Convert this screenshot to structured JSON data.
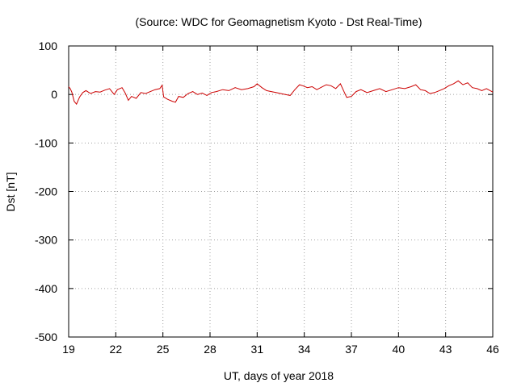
{
  "chart_data": {
    "type": "line",
    "title": "(Source: WDC for Geomagnetism Kyoto - Dst Real-Time)",
    "xlabel": "UT, days of year 2018",
    "ylabel": "Dst [nT]",
    "xlim": [
      19,
      46
    ],
    "ylim": [
      -500,
      100
    ],
    "x_ticks": [
      19,
      22,
      25,
      28,
      31,
      34,
      37,
      40,
      43,
      46
    ],
    "y_ticks": [
      100,
      0,
      -100,
      -200,
      -300,
      -400,
      -500
    ],
    "grid": true,
    "line_color": "#cc0000",
    "series": [
      {
        "x": [
          19.0,
          19.1,
          19.2,
          19.35,
          19.5,
          19.7,
          19.9,
          20.1,
          20.4,
          20.7,
          21.0,
          21.3,
          21.6,
          21.9,
          22.1,
          22.4,
          22.6,
          22.8,
          23.0,
          23.3,
          23.6,
          23.9,
          24.2,
          24.5,
          24.8,
          24.95,
          25.05,
          25.3,
          25.6,
          25.8,
          26.0,
          26.3,
          26.6,
          26.9,
          27.2,
          27.5,
          27.8,
          28.1,
          28.4,
          28.8,
          29.2,
          29.6,
          30.0,
          30.4,
          30.8,
          31.0,
          31.3,
          31.6,
          31.9,
          32.2,
          32.5,
          32.8,
          33.1,
          33.4,
          33.7,
          33.9,
          34.2,
          34.5,
          34.8,
          35.1,
          35.4,
          35.7,
          36.0,
          36.3,
          36.5,
          36.7,
          37.0,
          37.3,
          37.6,
          38.0,
          38.4,
          38.8,
          39.2,
          39.6,
          40.0,
          40.4,
          40.8,
          41.1,
          41.4,
          41.7,
          42.0,
          42.3,
          42.6,
          42.9,
          43.2,
          43.5,
          43.8,
          44.1,
          44.4,
          44.7,
          45.0,
          45.3,
          45.6,
          46.0
        ],
        "y": [
          16,
          12,
          5,
          -14,
          -20,
          -5,
          4,
          8,
          2,
          6,
          5,
          9,
          12,
          0,
          10,
          14,
          3,
          -12,
          -4,
          -8,
          4,
          2,
          6,
          10,
          12,
          19,
          -5,
          -10,
          -14,
          -16,
          -4,
          -6,
          2,
          6,
          0,
          3,
          -2,
          4,
          6,
          10,
          8,
          14,
          10,
          12,
          16,
          22,
          14,
          8,
          6,
          4,
          2,
          0,
          -2,
          10,
          20,
          18,
          14,
          16,
          10,
          15,
          20,
          18,
          12,
          22,
          8,
          -6,
          -4,
          6,
          10,
          4,
          8,
          12,
          6,
          10,
          14,
          12,
          16,
          20,
          10,
          8,
          2,
          4,
          8,
          12,
          18,
          22,
          28,
          20,
          24,
          14,
          12,
          8,
          12,
          5
        ]
      }
    ]
  }
}
